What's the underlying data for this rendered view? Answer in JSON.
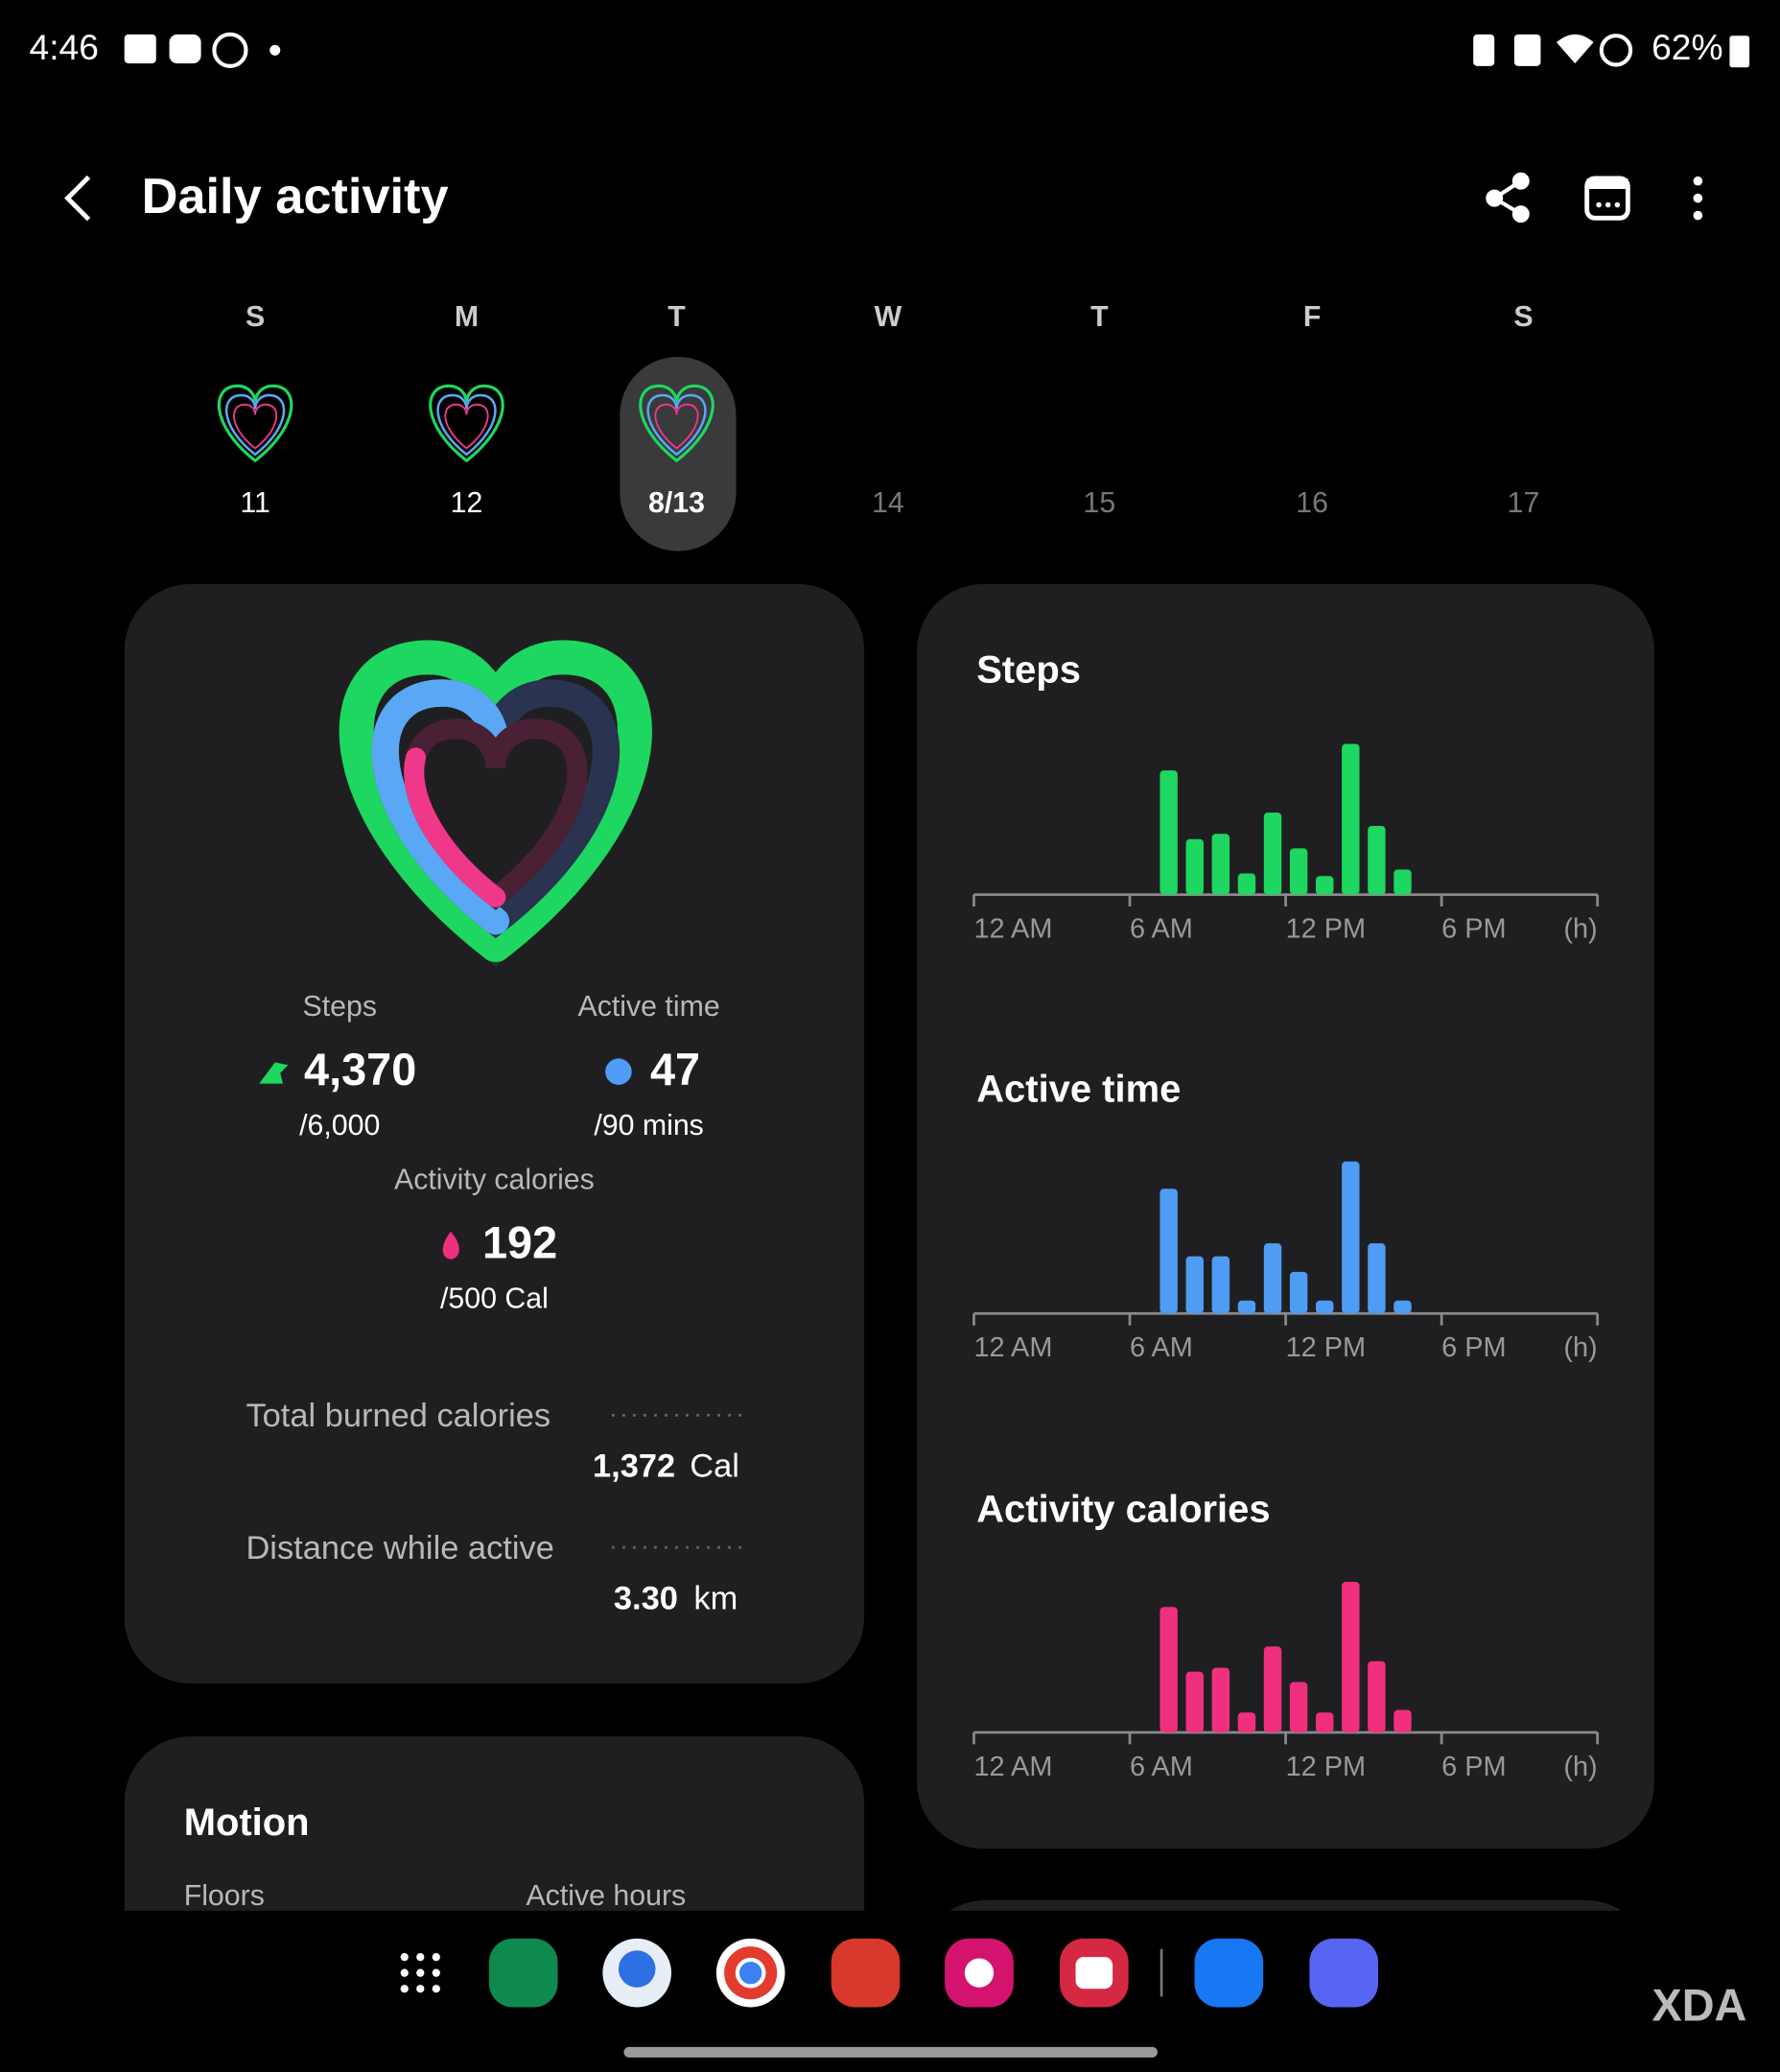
{
  "status_bar": {
    "time": "4:46",
    "battery": "62%"
  },
  "header": {
    "title": "Daily activity"
  },
  "week": {
    "days": [
      {
        "letter": "S",
        "date": "11"
      },
      {
        "letter": "M",
        "date": "12"
      },
      {
        "letter": "T",
        "date": "8/13"
      },
      {
        "letter": "W",
        "date": "14"
      },
      {
        "letter": "T",
        "date": "15"
      },
      {
        "letter": "F",
        "date": "16"
      },
      {
        "letter": "S",
        "date": "17"
      }
    ]
  },
  "summary": {
    "steps": {
      "label": "Steps",
      "value": "4,370",
      "goal": "/6,000"
    },
    "active_time": {
      "label": "Active time",
      "value": "47",
      "goal": "/90 mins"
    },
    "calories": {
      "label": "Activity calories",
      "value": "192",
      "goal": "/500 Cal"
    },
    "total_burned": {
      "label": "Total burned calories",
      "value": "1,372",
      "unit": "Cal"
    },
    "distance": {
      "label": "Distance while active",
      "value": "3.30",
      "unit": "km"
    }
  },
  "motion": {
    "title": "Motion",
    "floors": "Floors",
    "active_hours": "Active hours"
  },
  "watermark": "XDA",
  "chart_data": [
    {
      "type": "bar",
      "title": "Steps",
      "color": "#1ed760",
      "x": [
        7.5,
        8.5,
        9.5,
        10.5,
        11.5,
        12.5,
        13.5,
        14.5,
        15.5,
        16.5
      ],
      "values": [
        832,
        372,
        407,
        142,
        549,
        310,
        124,
        1009,
        460,
        168
      ],
      "xlim": [
        0,
        24
      ],
      "ylim": [
        0,
        1062
      ],
      "xticks": [
        {
          "value": 0,
          "label": "12 AM"
        },
        {
          "value": 6,
          "label": "6 AM"
        },
        {
          "value": 12,
          "label": "12 PM"
        },
        {
          "value": 18,
          "label": "6 PM"
        },
        {
          "value": 24,
          "label": "(h)"
        }
      ]
    },
    {
      "type": "bar",
      "title": "Active time",
      "color": "#4f9cf5",
      "x": [
        7.5,
        8.5,
        9.5,
        10.5,
        11.5,
        12.5,
        13.5,
        14.5,
        15.5,
        16.5
      ],
      "values": [
        9.6,
        4.4,
        4.4,
        1,
        5.4,
        3.2,
        1,
        11.7,
        5.4,
        1
      ],
      "xlim": [
        0,
        24
      ],
      "ylim": [
        0,
        12.2
      ],
      "xticks": [
        {
          "value": 0,
          "label": "12 AM"
        },
        {
          "value": 6,
          "label": "6 AM"
        },
        {
          "value": 12,
          "label": "12 PM"
        },
        {
          "value": 18,
          "label": "6 PM"
        },
        {
          "value": 24,
          "label": "(h)"
        }
      ]
    },
    {
      "type": "bar",
      "title": "Activity calories",
      "color": "#f0307e",
      "x": [
        7.5,
        8.5,
        9.5,
        10.5,
        11.5,
        12.5,
        13.5,
        14.5,
        15.5,
        16.5
      ],
      "values": [
        35.9,
        17.4,
        18.5,
        5.7,
        24.6,
        14.4,
        5.7,
        43.1,
        20.4,
        6.4
      ],
      "xlim": [
        0,
        24
      ],
      "ylim": [
        0,
        45.4
      ],
      "xticks": [
        {
          "value": 0,
          "label": "12 AM"
        },
        {
          "value": 6,
          "label": "6 AM"
        },
        {
          "value": 12,
          "label": "12 PM"
        },
        {
          "value": 18,
          "label": "6 PM"
        },
        {
          "value": 24,
          "label": "(h)"
        }
      ]
    }
  ]
}
